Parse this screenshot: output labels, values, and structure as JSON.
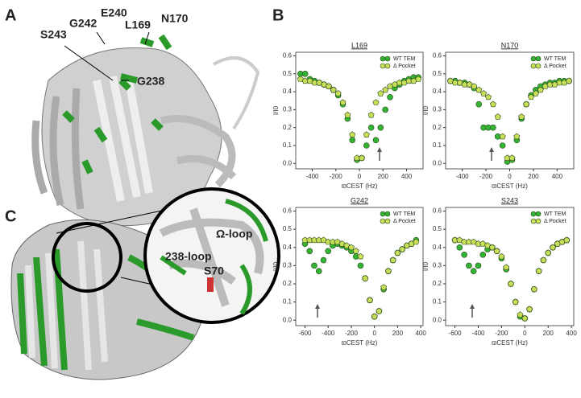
{
  "panels": {
    "a": "A",
    "b": "B",
    "c": "C"
  },
  "labels_a": [
    "S243",
    "G242",
    "E240",
    "L169",
    "N170",
    "G238"
  ],
  "labels_c": [
    "Ω-loop",
    "238-loop",
    "S70"
  ],
  "chart_data": [
    {
      "type": "scatter",
      "title": "L169",
      "x_label": "ϖCEST (Hz)",
      "y_label": "I/I0",
      "xlim": [
        -540,
        540
      ],
      "ylim": [
        -0.03,
        0.62
      ],
      "xticks": [
        -400,
        -200,
        0,
        200,
        400
      ],
      "yticks": [
        {
          "value": 0,
          "label": "0.0"
        },
        0.1,
        0.2,
        0.3,
        0.4,
        0.5,
        0.6
      ],
      "x": [
        -500,
        -460,
        -420,
        -380,
        -340,
        -300,
        -260,
        -220,
        -180,
        -140,
        -100,
        -60,
        -20,
        20,
        60,
        100,
        140,
        180,
        220,
        260,
        300,
        340,
        380,
        420,
        460,
        500
      ],
      "series": [
        {
          "name": "WT TEM",
          "color": "#33b233",
          "marker": "circle",
          "values": [
            0.5,
            0.5,
            0.47,
            0.46,
            0.45,
            0.44,
            0.43,
            0.41,
            0.38,
            0.33,
            0.25,
            0.13,
            0.02,
            0.03,
            0.1,
            0.2,
            0.13,
            0.2,
            0.3,
            0.37,
            0.42,
            0.44,
            0.46,
            0.47,
            0.48,
            0.48
          ]
        },
        {
          "name": "Δ Pocket",
          "color": "#c8df5a",
          "marker": "pentagon",
          "values": [
            0.47,
            0.46,
            0.46,
            0.45,
            0.45,
            0.44,
            0.43,
            0.41,
            0.39,
            0.34,
            0.27,
            0.16,
            0.03,
            0.03,
            0.16,
            0.27,
            0.34,
            0.39,
            0.41,
            0.43,
            0.44,
            0.45,
            0.45,
            0.46,
            0.46,
            0.47
          ]
        }
      ]
    },
    {
      "type": "scatter",
      "title": "N170",
      "x_label": "ϖCEST (Hz)",
      "y_label": "I/I0",
      "xlim": [
        -540,
        540
      ],
      "ylim": [
        -0.03,
        0.62
      ],
      "xticks": [
        -400,
        -200,
        0,
        200,
        400
      ],
      "yticks": [
        {
          "value": 0,
          "label": "0.0"
        },
        0.1,
        0.2,
        0.3,
        0.4,
        0.5,
        0.6
      ],
      "x": [
        -500,
        -460,
        -420,
        -380,
        -340,
        -300,
        -260,
        -220,
        -180,
        -140,
        -100,
        -60,
        -20,
        20,
        60,
        100,
        140,
        180,
        220,
        260,
        300,
        340,
        380,
        420,
        460,
        500
      ],
      "series": [
        {
          "name": "WT TEM",
          "color": "#33b233",
          "marker": "circle",
          "values": [
            0.46,
            0.46,
            0.45,
            0.45,
            0.44,
            0.42,
            0.33,
            0.2,
            0.2,
            0.2,
            0.15,
            0.1,
            0.01,
            0.02,
            0.13,
            0.25,
            0.33,
            0.38,
            0.41,
            0.43,
            0.44,
            0.45,
            0.45,
            0.46,
            0.46,
            0.46
          ]
        },
        {
          "name": "Δ Pocket",
          "color": "#c8df5a",
          "marker": "pentagon",
          "values": [
            0.46,
            0.45,
            0.45,
            0.44,
            0.44,
            0.43,
            0.41,
            0.39,
            0.37,
            0.33,
            0.26,
            0.15,
            0.03,
            0.03,
            0.15,
            0.26,
            0.33,
            0.37,
            0.39,
            0.41,
            0.43,
            0.44,
            0.44,
            0.45,
            0.45,
            0.46
          ]
        }
      ]
    },
    {
      "type": "scatter",
      "title": "G242",
      "x_label": "ϖCEST (Hz)",
      "y_label": "I/I0",
      "xlim": [
        -680,
        420
      ],
      "ylim": [
        -0.03,
        0.62
      ],
      "xticks": [
        -600,
        -400,
        -200,
        0,
        200,
        400
      ],
      "yticks": [
        {
          "value": 0,
          "label": "0.0"
        },
        0.1,
        0.2,
        0.3,
        0.4,
        0.5,
        0.6
      ],
      "x": [
        -600,
        -560,
        -520,
        -480,
        -440,
        -400,
        -360,
        -320,
        -280,
        -240,
        -200,
        -160,
        -120,
        -80,
        -40,
        0,
        40,
        80,
        120,
        160,
        200,
        240,
        280,
        320,
        360
      ],
      "series": [
        {
          "name": "WT TEM",
          "color": "#33b233",
          "marker": "circle",
          "values": [
            0.42,
            0.38,
            0.3,
            0.27,
            0.33,
            0.38,
            0.41,
            0.42,
            0.41,
            0.4,
            0.38,
            0.35,
            0.3,
            0.23,
            0.11,
            0.02,
            0.05,
            0.17,
            0.27,
            0.33,
            0.37,
            0.39,
            0.41,
            0.42,
            0.44
          ]
        },
        {
          "name": "Δ Pocket",
          "color": "#c8df5a",
          "marker": "pentagon",
          "values": [
            0.44,
            0.44,
            0.44,
            0.44,
            0.44,
            0.43,
            0.43,
            0.43,
            0.42,
            0.41,
            0.4,
            0.38,
            0.35,
            0.23,
            0.11,
            0.02,
            0.05,
            0.18,
            0.27,
            0.33,
            0.37,
            0.39,
            0.41,
            0.42,
            0.43
          ]
        }
      ]
    },
    {
      "type": "scatter",
      "title": "S243",
      "x_label": "ϖCEST (Hz)",
      "y_label": "I/I0",
      "xlim": [
        -680,
        420
      ],
      "ylim": [
        -0.03,
        0.62
      ],
      "xticks": [
        -600,
        -400,
        -200,
        0,
        200,
        400
      ],
      "yticks": [
        {
          "value": 0,
          "label": "0.0"
        },
        0.1,
        0.2,
        0.3,
        0.4,
        0.5,
        0.6
      ],
      "x": [
        -600,
        -560,
        -520,
        -480,
        -440,
        -400,
        -360,
        -320,
        -280,
        -240,
        -200,
        -160,
        -120,
        -80,
        -40,
        0,
        40,
        80,
        120,
        160,
        200,
        240,
        280,
        320,
        360
      ],
      "series": [
        {
          "name": "WT TEM",
          "color": "#33b233",
          "marker": "circle",
          "values": [
            0.44,
            0.4,
            0.36,
            0.3,
            0.27,
            0.3,
            0.36,
            0.39,
            0.4,
            0.38,
            0.34,
            0.28,
            0.2,
            0.1,
            0.02,
            0.01,
            0.06,
            0.17,
            0.27,
            0.33,
            0.37,
            0.4,
            0.42,
            0.43,
            0.44
          ]
        },
        {
          "name": "Δ Pocket",
          "color": "#c8df5a",
          "marker": "pentagon",
          "values": [
            0.44,
            0.44,
            0.43,
            0.43,
            0.43,
            0.42,
            0.42,
            0.41,
            0.4,
            0.38,
            0.35,
            0.29,
            0.2,
            0.1,
            0.03,
            0.01,
            0.06,
            0.17,
            0.27,
            0.33,
            0.37,
            0.4,
            0.42,
            0.43,
            0.44
          ]
        }
      ]
    }
  ]
}
